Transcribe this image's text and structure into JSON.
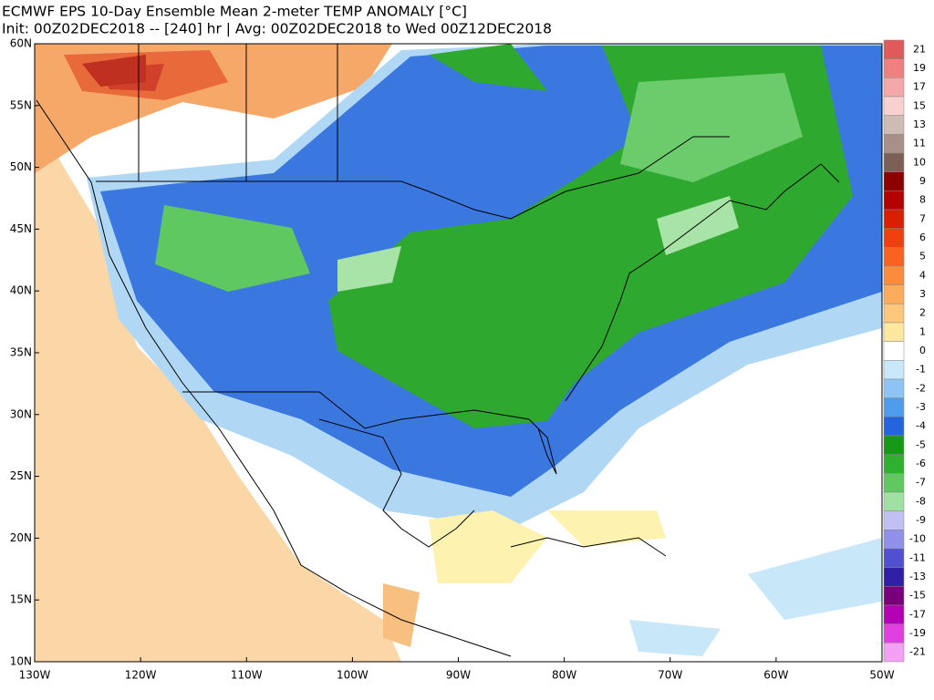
{
  "header": {
    "line1": "ECMWF EPS 10-Day Ensemble Mean 2-meter TEMP ANOMALY [°C]",
    "line2": "Init: 00Z02DEC2018 -- [240] hr | Avg: 00Z02DEC2018 to Wed 00Z12DEC2018"
  },
  "map": {
    "lat_labels": [
      "60N",
      "55N",
      "50N",
      "45N",
      "40N",
      "35N",
      "30N",
      "25N",
      "20N",
      "15N",
      "10N"
    ],
    "lon_labels": [
      "130W",
      "120W",
      "110W",
      "100W",
      "90W",
      "80W",
      "70W",
      "60W",
      "50W"
    ]
  },
  "colorbar": {
    "labels": [
      21,
      19,
      17,
      15,
      13,
      11,
      10,
      9,
      8,
      7,
      6,
      5,
      4,
      3,
      2,
      1,
      0,
      -1,
      -2,
      -3,
      -4,
      -5,
      -6,
      -7,
      -8,
      -9,
      -10,
      -11,
      -13,
      -15,
      -17,
      -19,
      -21
    ],
    "colors": [
      "#e05a5a",
      "#ee8080",
      "#f4a8a8",
      "#f8d0d0",
      "#ccbcb4",
      "#a89088",
      "#7c6058",
      "#8c0000",
      "#b40000",
      "#d82000",
      "#f04010",
      "#f86420",
      "#fa8c3c",
      "#fcac5c",
      "#fdc87c",
      "#fee8a0",
      "#ffffff",
      "#c8e8fa",
      "#8cc4f4",
      "#509cec",
      "#2464dc",
      "#189818",
      "#30b030",
      "#60c860",
      "#a0e0a0",
      "#c0c0f4",
      "#9090e8",
      "#5050d0",
      "#3020a8",
      "#780078",
      "#b400b4",
      "#e040e0",
      "#f4a0f4"
    ]
  }
}
